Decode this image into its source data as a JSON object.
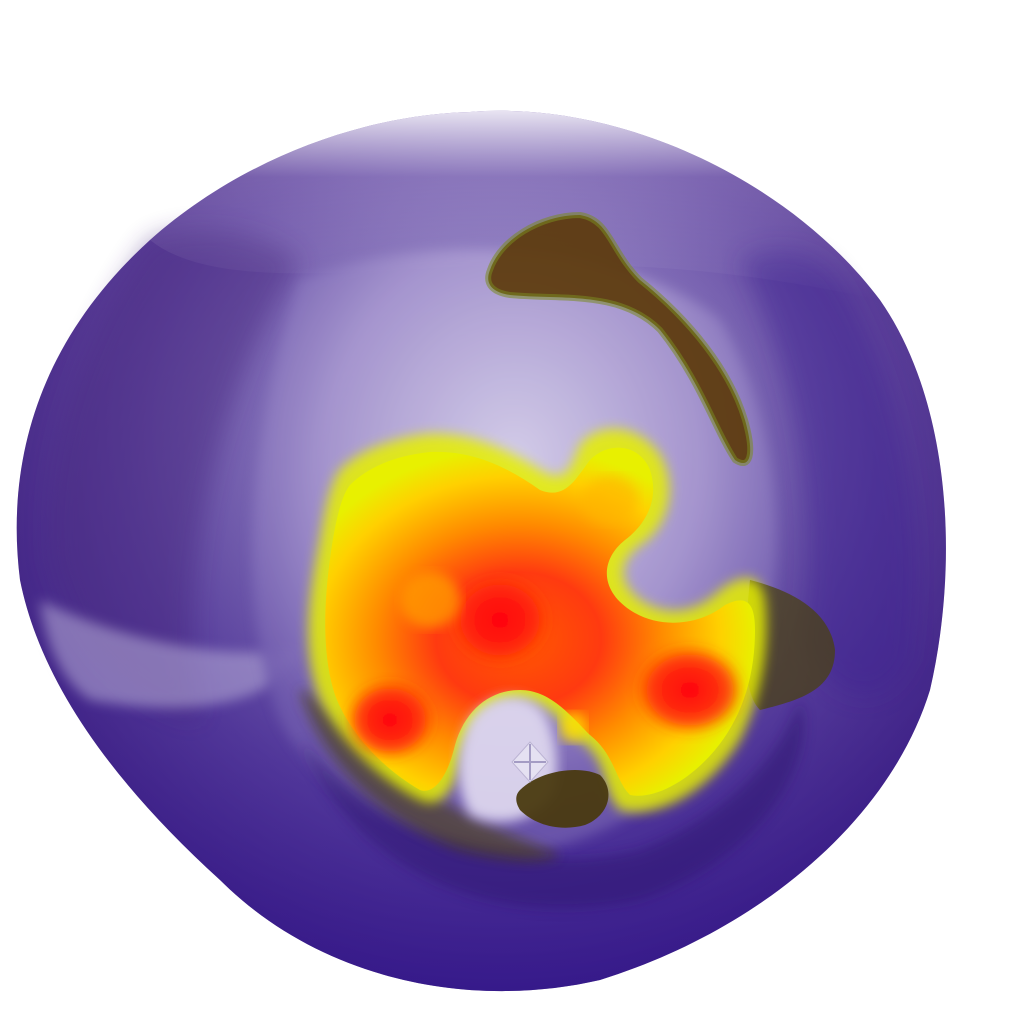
{
  "viewer": {
    "background_color": "#ffffff",
    "object": {
      "kind": "3d-surface-render",
      "base_colors": [
        "#3a1f8c",
        "#5a2a7a",
        "#7a5cb0",
        "#c9c0e0"
      ],
      "overlay_colormap": [
        "#4a4010",
        "#5a3a0a",
        "#ff0000",
        "#ff6000",
        "#ffa000",
        "#ffff00"
      ]
    },
    "cursor": {
      "icon": "crosshair-diamond-icon"
    }
  }
}
